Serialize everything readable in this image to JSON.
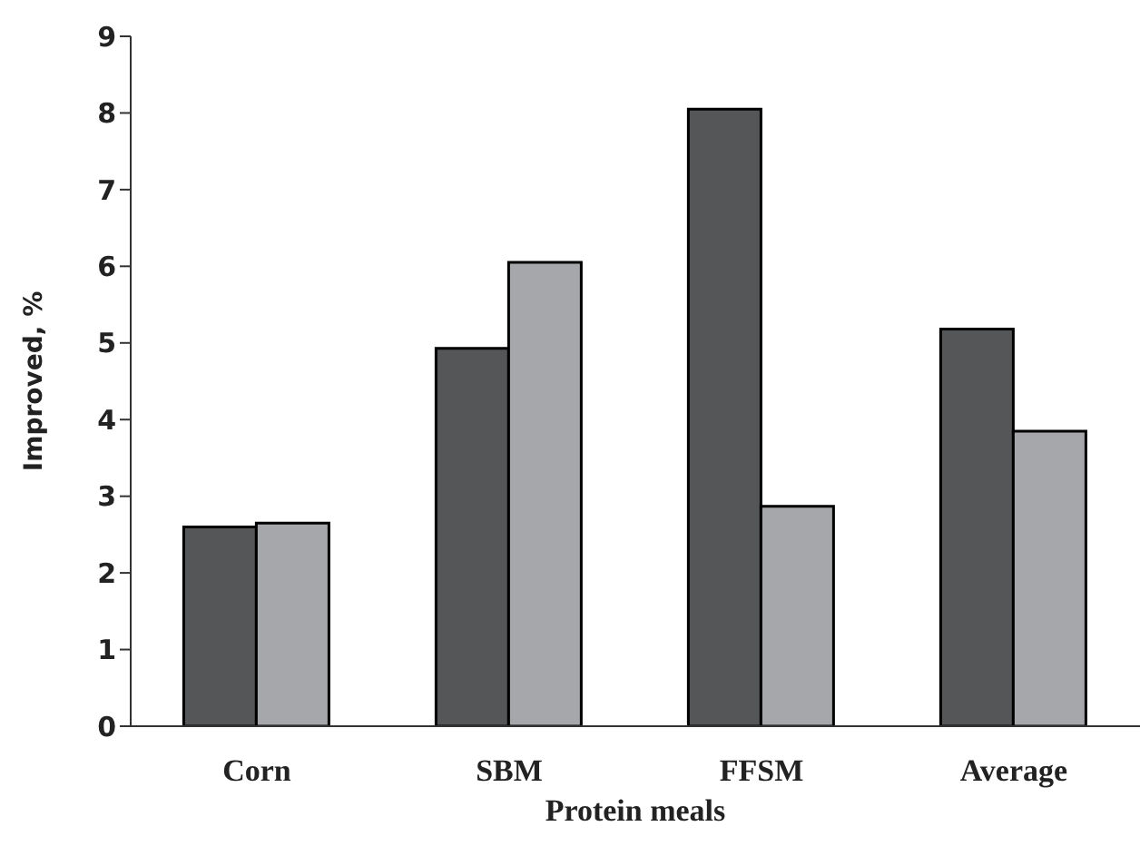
{
  "chart_data": {
    "type": "bar",
    "xlabel": "Protein meals",
    "ylabel": "Improved, %",
    "categories": [
      "Corn",
      "SBM",
      "FFSM",
      "Average"
    ],
    "series": [
      {
        "color": "#555658",
        "values": [
          2.6,
          4.93,
          8.05,
          5.18
        ]
      },
      {
        "color": "#a6a7aa",
        "values": [
          2.65,
          6.05,
          2.87,
          3.85
        ]
      }
    ],
    "ylim": [
      0,
      9
    ],
    "yticks": [
      0,
      1,
      2,
      3,
      4,
      5,
      6,
      7,
      8,
      9
    ],
    "grid": false,
    "legend": false
  }
}
